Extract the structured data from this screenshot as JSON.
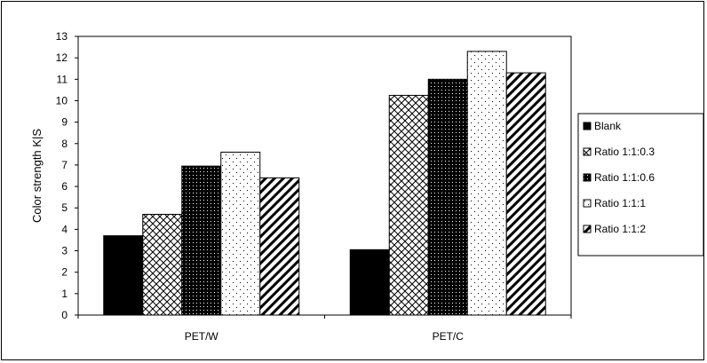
{
  "chart_data": {
    "type": "bar",
    "title": "",
    "xlabel": "",
    "ylabel": "Color strength K|S",
    "ylim": [
      0,
      13
    ],
    "yticks": [
      0,
      1,
      2,
      3,
      4,
      5,
      6,
      7,
      8,
      9,
      10,
      11,
      12,
      13
    ],
    "categories": [
      "PET/W",
      "PET/C"
    ],
    "series": [
      {
        "name": "Blank",
        "values": [
          3.7,
          3.05
        ],
        "pattern": "solid"
      },
      {
        "name": "Ratio 1:1:0.3",
        "values": [
          4.7,
          10.25
        ],
        "pattern": "crosshatch"
      },
      {
        "name": "Ratio 1:1:0.6",
        "values": [
          6.95,
          11.0
        ],
        "pattern": "dense-dots"
      },
      {
        "name": "Ratio 1:1:1",
        "values": [
          7.6,
          12.3
        ],
        "pattern": "sparse-dots"
      },
      {
        "name": "Ratio 1:1:2",
        "values": [
          6.4,
          11.3
        ],
        "pattern": "diagonal"
      }
    ],
    "grid": false,
    "legend_position": "right",
    "colors": {
      "bar_fill": "#000000",
      "background": "#ffffff",
      "border": "#000000"
    }
  }
}
